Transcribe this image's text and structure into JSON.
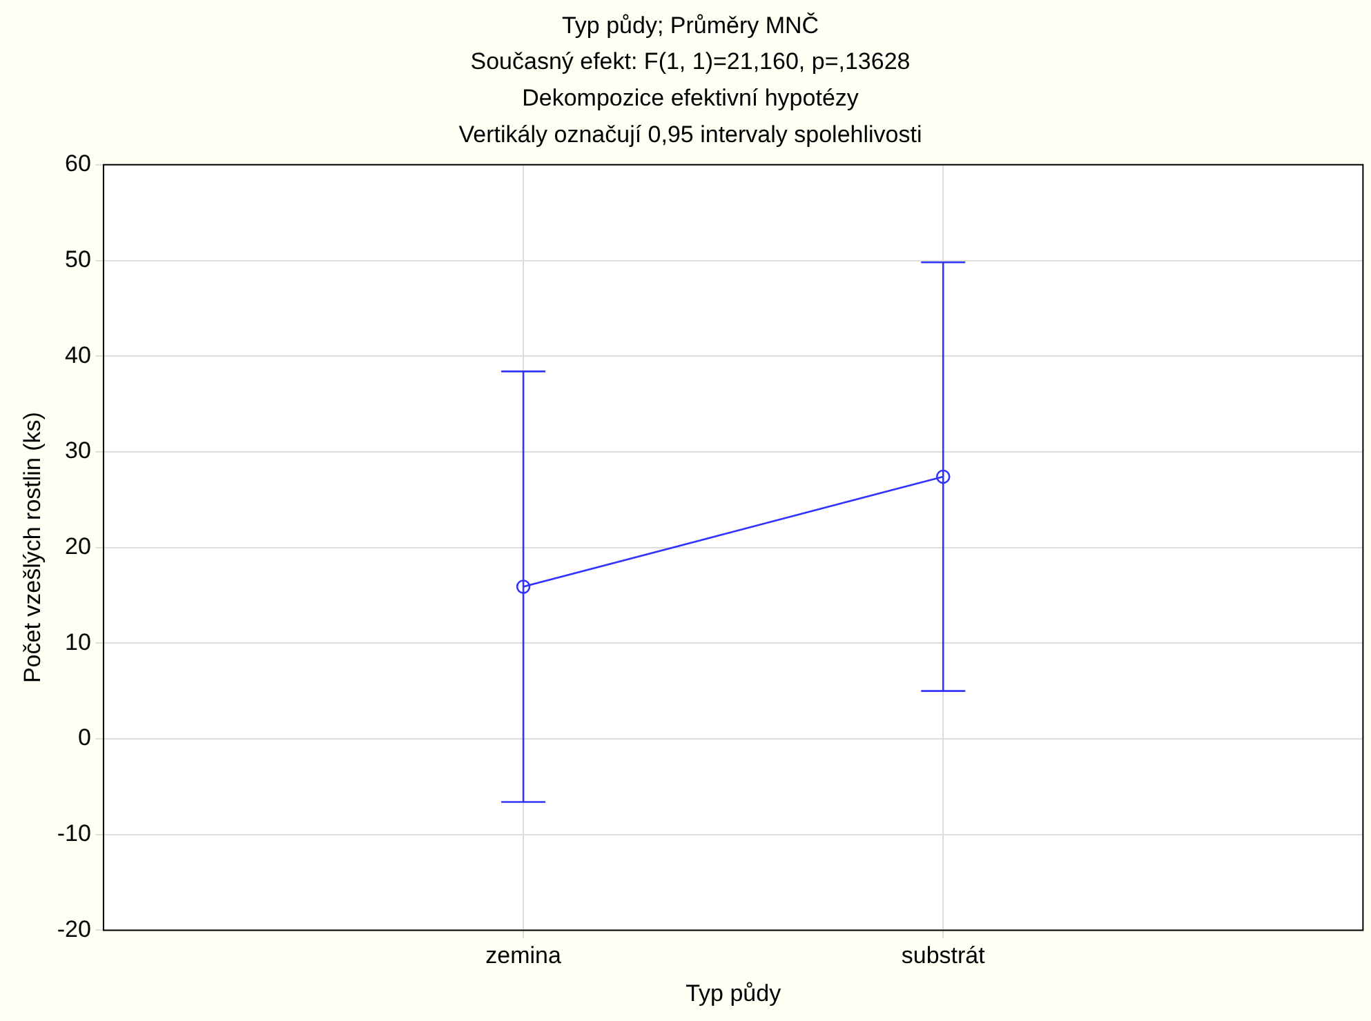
{
  "chart_data": {
    "type": "line",
    "title": [
      "Typ půdy; Průměry MNČ",
      "Současný efekt: F(1, 1)=21,160, p=,13628",
      "Dekompozice efektivní hypotézy",
      "Vertikály označují 0,95 intervaly spolehlivosti"
    ],
    "xlabel": "Typ půdy",
    "ylabel": "Počet vzešlých rostlin (ks)",
    "categories": [
      "zemina",
      "substrát"
    ],
    "series": [
      {
        "color": "#3333ff",
        "values": [
          15.9,
          27.4
        ],
        "errors": [
          [
            -6.6,
            38.4
          ],
          [
            5.0,
            49.8
          ]
        ]
      }
    ],
    "ylim": [
      -20,
      60
    ],
    "yticks": [
      -20,
      -10,
      0,
      10,
      20,
      30,
      40,
      50,
      60
    ],
    "grid": true,
    "legend": false,
    "marker": "circle",
    "line_style": "solid"
  }
}
